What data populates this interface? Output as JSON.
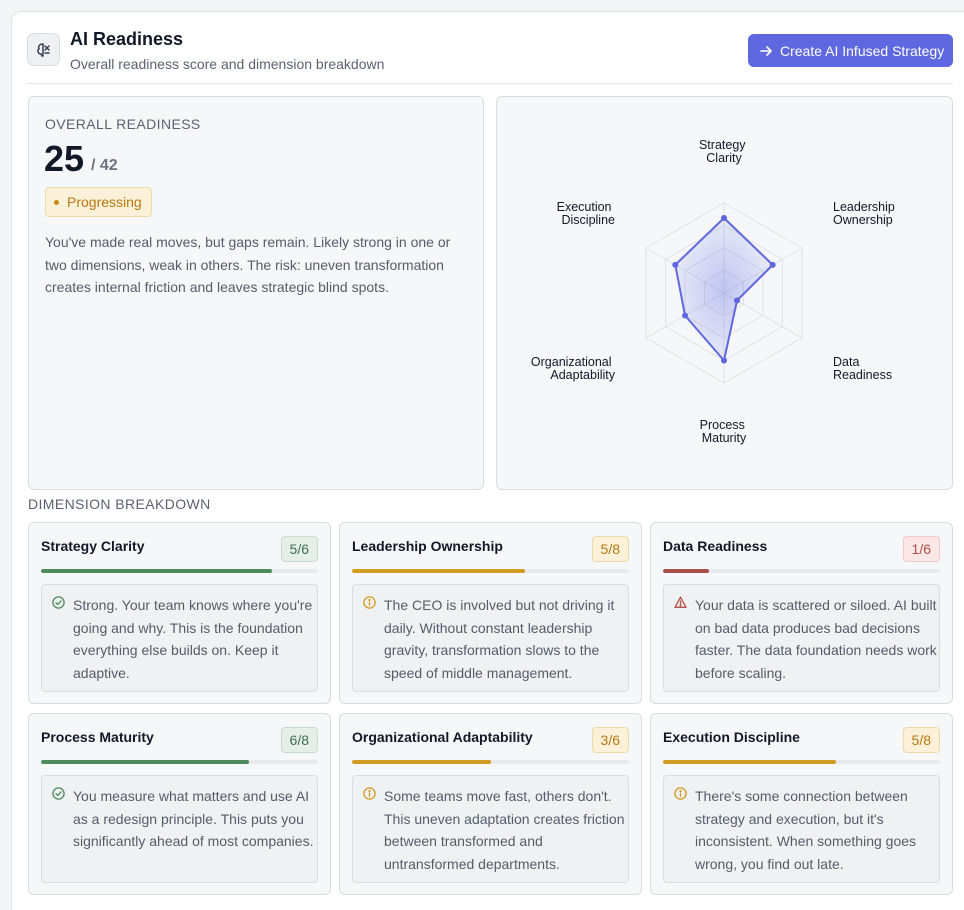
{
  "header": {
    "title": "AI Readiness",
    "subtitle": "Overall readiness score and dimension breakdown",
    "cta_label": "Create AI Infused Strategy"
  },
  "overall": {
    "label": "OVERALL READINESS",
    "score": "25",
    "max": "/ 42",
    "status": "Progressing",
    "description": "You've made real moves, but gaps remain. Likely strong in one or two dimensions, weak in others. The risk: uneven transformation creates internal friction and leaves strategic blind spots."
  },
  "radar": {
    "labels": {
      "strategy": [
        "Strategy",
        "Clarity"
      ],
      "leadership": [
        "Leadership",
        "Ownership"
      ],
      "data": [
        "Data",
        "Readiness"
      ],
      "process": [
        "Process",
        "Maturity"
      ],
      "org": [
        "Organizational",
        "Adaptability"
      ],
      "execution": [
        "Execution",
        "Discipline"
      ]
    },
    "scores": [
      0.833,
      0.625,
      0.167,
      0.75,
      0.5,
      0.625
    ],
    "accent": "#5f68e0"
  },
  "breakdown": {
    "title": "DIMENSION BREAKDOWN",
    "cards": [
      {
        "title": "Strategy Clarity",
        "score": "5/6",
        "level": "green",
        "fraction": 0.833,
        "text": "Strong. Your team knows where you're going and why. This is the foundation everything else builds on. Keep it adaptive."
      },
      {
        "title": "Leadership Ownership",
        "score": "5/8",
        "level": "amber",
        "fraction": 0.625,
        "text": "The CEO is involved but not driving it daily. Without constant leadership gravity, transformation slows to the speed of middle management."
      },
      {
        "title": "Data Readiness",
        "score": "1/6",
        "level": "red",
        "fraction": 0.167,
        "text": "Your data is scattered or siloed. AI built on bad data produces bad decisions faster. The data foundation needs work before scaling."
      },
      {
        "title": "Process Maturity",
        "score": "6/8",
        "level": "green",
        "fraction": 0.75,
        "text": "You measure what matters and use AI as a redesign principle. This puts you significantly ahead of most companies."
      },
      {
        "title": "Organizational Adaptability",
        "score": "3/6",
        "level": "amber",
        "fraction": 0.5,
        "text": "Some teams move fast, others don't. This uneven adaptation creates friction between transformed and untransformed departments."
      },
      {
        "title": "Execution Discipline",
        "score": "5/8",
        "level": "amber",
        "fraction": 0.625,
        "text": "There's some connection between strategy and execution, but it's inconsistent. When something goes wrong, you find out late."
      }
    ]
  }
}
